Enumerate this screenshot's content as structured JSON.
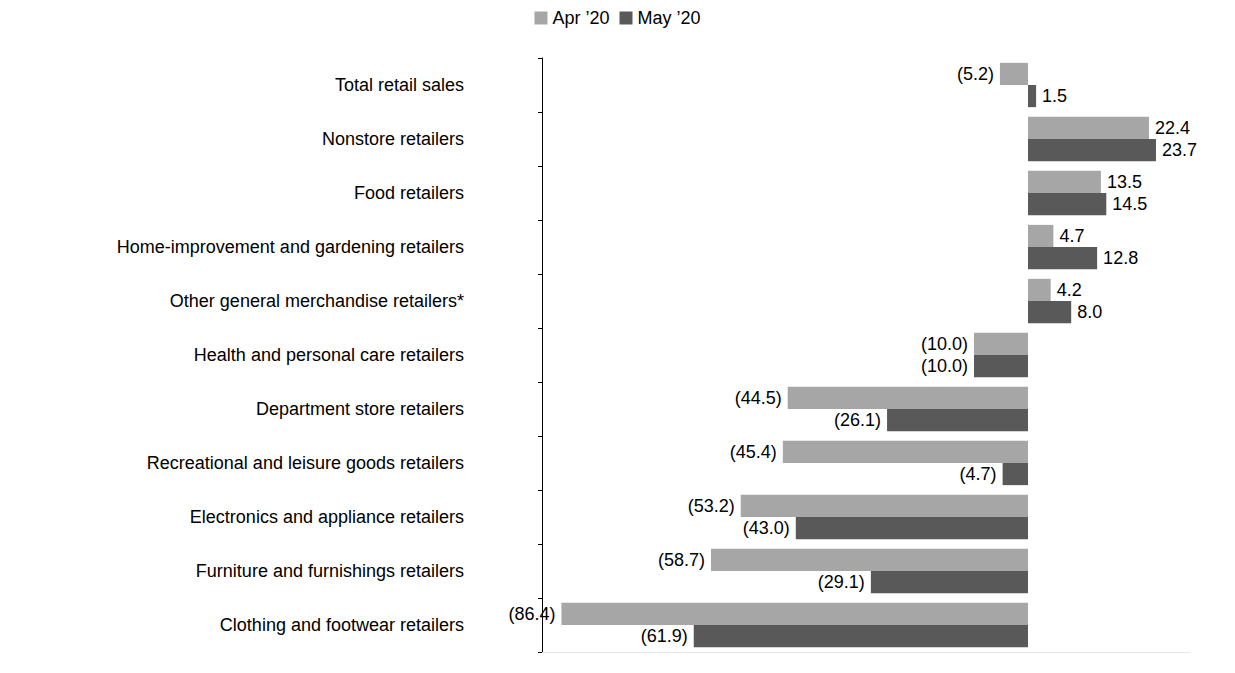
{
  "chart_data": {
    "type": "bar",
    "orientation": "horizontal",
    "categories": [
      "Total retail sales",
      "Nonstore retailers",
      "Food retailers",
      "Home-improvement and gardening retailers",
      "Other general merchandise retailers*",
      "Health and personal care retailers",
      "Department store retailers",
      "Recreational and leisure goods retailers",
      "Electronics and appliance retailers",
      "Furniture and furnishings retailers",
      "Clothing and footwear retailers"
    ],
    "series": [
      {
        "name": "Apr ’20",
        "color": "#a6a6a6",
        "values": [
          -5.2,
          22.4,
          13.5,
          4.7,
          4.2,
          -10.0,
          -44.5,
          -45.4,
          -53.2,
          -58.7,
          -86.4
        ],
        "value_labels": [
          "(5.2)",
          "22.4",
          "13.5",
          "4.7",
          "4.2",
          "(10.0)",
          "(44.5)",
          "(45.4)",
          "(53.2)",
          "(58.7)",
          "(86.4)"
        ]
      },
      {
        "name": "May ’20",
        "color": "#595959",
        "values": [
          1.5,
          23.7,
          14.5,
          12.8,
          8.0,
          -10.0,
          -26.1,
          -4.7,
          -43.0,
          -29.1,
          -61.9
        ],
        "value_labels": [
          "1.5",
          "23.7",
          "14.5",
          "12.8",
          "8.0",
          "(10.0)",
          "(26.1)",
          "(4.7)",
          "(43.0)",
          "(29.1)",
          "(61.9)"
        ]
      }
    ],
    "xlim": [
      -90,
      30
    ],
    "data_labels": true,
    "tick_labels": "y",
    "grid": false,
    "legend": "top"
  }
}
